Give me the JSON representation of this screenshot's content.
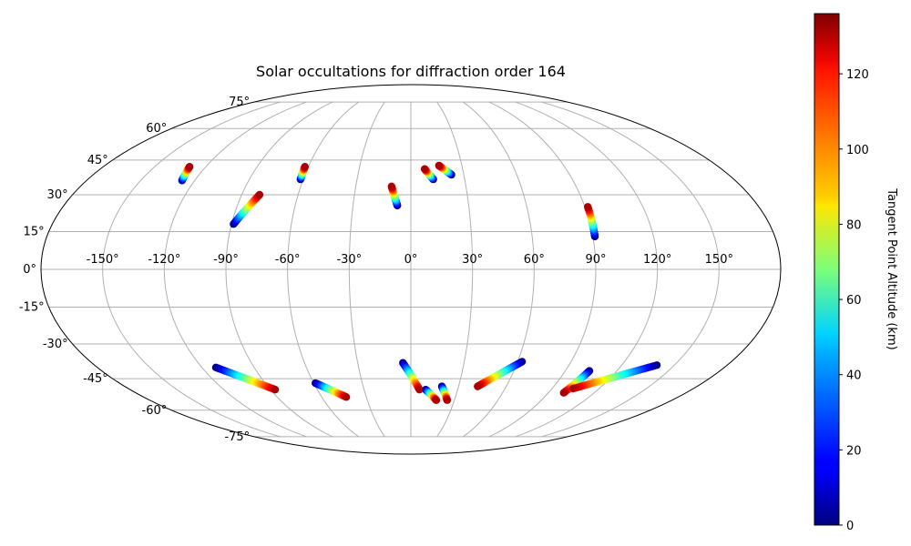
{
  "chart_data": {
    "type": "scatter",
    "projection": "mollweide",
    "title": "Solar occultations for diffraction order 164",
    "x_ticks": [
      "-150°",
      "-120°",
      "-90°",
      "-60°",
      "-30°",
      "0°",
      "30°",
      "60°",
      "90°",
      "120°",
      "150°"
    ],
    "y_ticks": [
      "75°",
      "60°",
      "45°",
      "30°",
      "15°",
      "0°",
      "-15°",
      "-30°",
      "-45°",
      "-60°",
      "-75°"
    ],
    "grid": true,
    "colorbar": {
      "label": "Tangent Point Altitude (km)",
      "min": 0,
      "max": 136,
      "colormap": "jet",
      "ticks": [
        "0",
        "20",
        "40",
        "60",
        "80",
        "100",
        "120"
      ]
    },
    "series": [
      {
        "lon": [
          -127.0,
          -129.5
        ],
        "lat": [
          36.0,
          42.0
        ],
        "alt": [
          0,
          130
        ]
      },
      {
        "lon": [
          -89.0,
          -80.5
        ],
        "lat": [
          18.0,
          30.0
        ],
        "alt": [
          0,
          130
        ]
      },
      {
        "lon": [
          -61.5,
          -62.0
        ],
        "lat": [
          36.5,
          42.0
        ],
        "alt": [
          0,
          130
        ]
      },
      {
        "lon": [
          -7.0,
          -10.5
        ],
        "lat": [
          25.5,
          33.5
        ],
        "alt": [
          0,
          130
        ]
      },
      {
        "lon": [
          12.5,
          8.0
        ],
        "lat": [
          36.5,
          41.0
        ],
        "alt": [
          0,
          130
        ]
      },
      {
        "lon": [
          23.0,
          16.5
        ],
        "lat": [
          38.5,
          42.5
        ],
        "alt": [
          0,
          130
        ]
      },
      {
        "lon": [
          91.0,
          91.5
        ],
        "lat": [
          13.0,
          25.0
        ],
        "alt": [
          0,
          130
        ]
      },
      {
        "lon": [
          -112.0,
          -87.0
        ],
        "lat": [
          -40.0,
          -50.0
        ],
        "alt": [
          0,
          130
        ]
      },
      {
        "lon": [
          -59.0,
          -43.5
        ],
        "lat": [
          -47.0,
          -53.5
        ],
        "alt": [
          0,
          130
        ]
      },
      {
        "lon": [
          -4.5,
          5.5
        ],
        "lat": [
          -38.0,
          -50.0
        ],
        "alt": [
          0,
          130
        ]
      },
      {
        "lon": [
          9.5,
          17.5
        ],
        "lat": [
          -50.0,
          -55.0
        ],
        "alt": [
          0,
          130
        ]
      },
      {
        "lon": [
          19.5,
          25.0
        ],
        "lat": [
          -48.5,
          -55.0
        ],
        "alt": [
          0,
          130
        ]
      },
      {
        "lon": [
          62.5,
          42.0
        ],
        "lat": [
          -37.5,
          -48.5
        ],
        "alt": [
          0,
          130
        ]
      },
      {
        "lon": [
          104.0,
          100.0
        ],
        "lat": [
          -41.5,
          -51.5
        ],
        "alt": [
          0,
          130
        ]
      },
      {
        "lon": [
          140.0,
          103.5
        ],
        "lat": [
          -39.0,
          -49.5
        ],
        "alt": [
          0,
          130
        ]
      }
    ]
  }
}
